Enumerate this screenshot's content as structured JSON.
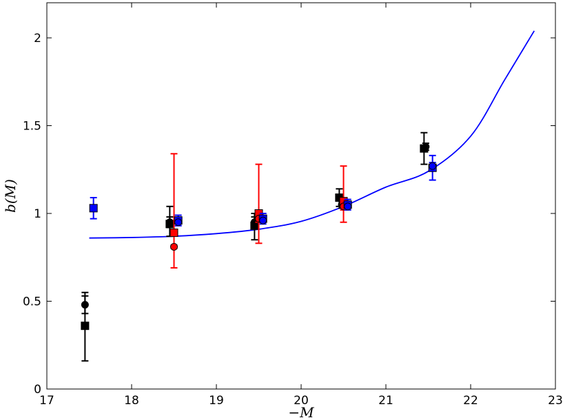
{
  "chart_data": {
    "type": "scatter",
    "title": "",
    "xlabel": "−M",
    "ylabel": "b(M)",
    "xlim": [
      17,
      23
    ],
    "ylim": [
      0,
      2.2
    ],
    "x_ticks": [
      "17",
      "18",
      "19",
      "20",
      "21",
      "22",
      "23"
    ],
    "y_ticks": [
      "0",
      "0.5",
      "1",
      "1.5",
      "2"
    ],
    "grid": false,
    "legend": "none",
    "model_curve": {
      "color": "#0000ff",
      "x": [
        17.5,
        18.0,
        18.5,
        19.0,
        19.5,
        20.0,
        20.5,
        21.0,
        21.5,
        22.0,
        22.4,
        22.75
      ],
      "y": [
        0.86,
        0.863,
        0.87,
        0.885,
        0.91,
        0.955,
        1.04,
        1.15,
        1.24,
        1.44,
        1.76,
        2.04
      ]
    },
    "series": [
      {
        "color": "#000000",
        "marker": "square",
        "points": [
          {
            "x": 17.45,
            "y": 0.36,
            "lo": 0.16,
            "hi": 0.53
          },
          {
            "x": 18.45,
            "y": 0.94,
            "lo": 0.87,
            "hi": 1.04
          },
          {
            "x": 19.45,
            "y": 0.93,
            "lo": 0.85,
            "hi": 1.0
          },
          {
            "x": 20.45,
            "y": 1.09,
            "lo": 1.04,
            "hi": 1.14
          },
          {
            "x": 21.45,
            "y": 1.37,
            "lo": 1.28,
            "hi": 1.46
          }
        ]
      },
      {
        "color": "#000000",
        "marker": "circle",
        "points": [
          {
            "x": 17.45,
            "y": 0.48,
            "lo": 0.43,
            "hi": 0.55
          },
          {
            "x": 18.45,
            "y": 0.95,
            "lo": 0.92,
            "hi": 0.98
          },
          {
            "x": 19.45,
            "y": 0.95,
            "lo": 0.92,
            "hi": 0.98
          },
          {
            "x": 20.48,
            "y": 1.05,
            "lo": 1.03,
            "hi": 1.07
          },
          {
            "x": 21.47,
            "y": 1.38,
            "lo": 1.36,
            "hi": 1.4
          }
        ]
      },
      {
        "color": "#ff0000",
        "marker": "square",
        "points": [
          {
            "x": 18.5,
            "y": 0.89,
            "lo": 0.69,
            "hi": 1.34
          },
          {
            "x": 19.5,
            "y": 1.0,
            "lo": 0.83,
            "hi": 1.28
          },
          {
            "x": 20.5,
            "y": 1.07,
            "lo": 0.95,
            "hi": 1.27
          }
        ]
      },
      {
        "color": "#ff0000",
        "marker": "circle",
        "points": [
          {
            "x": 18.5,
            "y": 0.81,
            "lo": 0.8,
            "hi": 0.82
          },
          {
            "x": 19.5,
            "y": 0.97,
            "lo": 0.95,
            "hi": 0.99
          },
          {
            "x": 20.5,
            "y": 1.04,
            "lo": 1.02,
            "hi": 1.06
          }
        ]
      },
      {
        "color": "#0000ff",
        "marker": "square",
        "points": [
          {
            "x": 17.55,
            "y": 1.03,
            "lo": 0.97,
            "hi": 1.09
          },
          {
            "x": 18.55,
            "y": 0.96,
            "lo": 0.93,
            "hi": 0.99
          },
          {
            "x": 19.55,
            "y": 0.97,
            "lo": 0.94,
            "hi": 1.0
          },
          {
            "x": 20.55,
            "y": 1.05,
            "lo": 1.02,
            "hi": 1.08
          },
          {
            "x": 21.55,
            "y": 1.26,
            "lo": 1.19,
            "hi": 1.33
          }
        ]
      },
      {
        "color": "#0000ff",
        "marker": "circle",
        "points": [
          {
            "x": 18.55,
            "y": 0.95,
            "lo": 0.94,
            "hi": 0.96
          },
          {
            "x": 19.55,
            "y": 0.96,
            "lo": 0.95,
            "hi": 0.97
          },
          {
            "x": 20.55,
            "y": 1.04,
            "lo": 1.03,
            "hi": 1.05
          },
          {
            "x": 21.55,
            "y": 1.27,
            "lo": 1.25,
            "hi": 1.29
          }
        ]
      }
    ]
  }
}
